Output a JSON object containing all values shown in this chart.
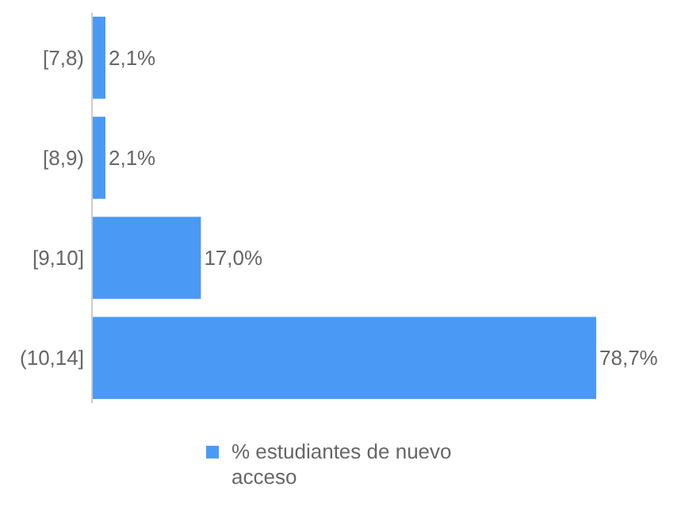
{
  "chart_data": {
    "type": "bar",
    "orientation": "horizontal",
    "relative": false,
    "categories": [
      "[7,8)",
      "[8,9)",
      "[9,10]",
      "(10,14]"
    ],
    "series": [
      {
        "name": "% estudiantes de nuevo acceso",
        "color": "#4a9af5",
        "values": [
          2.1,
          2.1,
          17.0,
          78.7
        ],
        "value_labels": [
          "2,1%",
          "2,1%",
          "17,0%",
          "78,7%"
        ]
      }
    ],
    "legend": "bottom"
  }
}
